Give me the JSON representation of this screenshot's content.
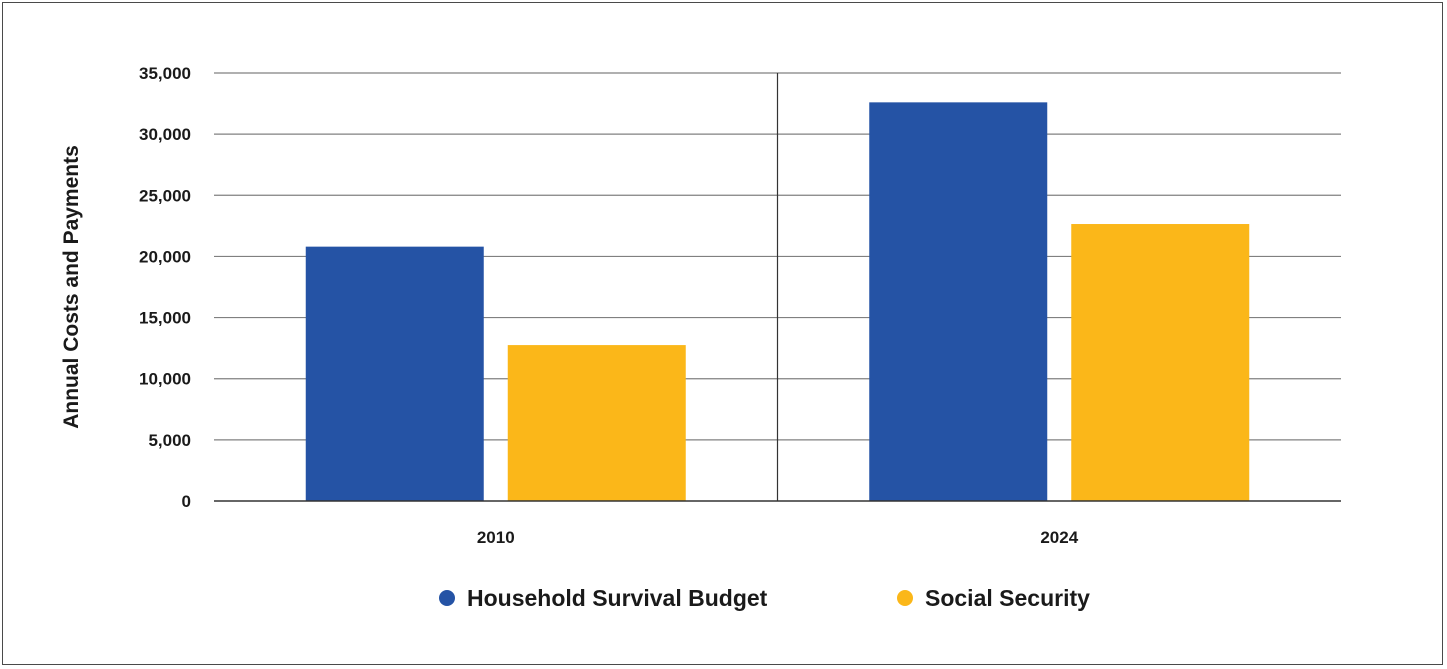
{
  "chart_data": {
    "type": "bar",
    "categories": [
      "2010",
      "2024"
    ],
    "series": [
      {
        "name": "Household Survival Budget",
        "color": "#2553a5",
        "values": [
          20800,
          32600
        ]
      },
      {
        "name": "Social Security",
        "color": "#fbb719",
        "values": [
          12750,
          22650
        ]
      }
    ],
    "title": "",
    "xlabel": "",
    "ylabel": "Annual Costs and Payments",
    "ylim": [
      0,
      35000
    ],
    "yticks": [
      0,
      5000,
      10000,
      15000,
      20000,
      25000,
      30000,
      35000
    ],
    "ytick_labels": [
      "0",
      "5,000",
      "10,000",
      "15,000",
      "20,000",
      "25,000",
      "30,000",
      "35,000"
    ],
    "grid": true,
    "legend": "bottom",
    "colors": {
      "gridline": "#808080",
      "axis": "#333333"
    }
  }
}
